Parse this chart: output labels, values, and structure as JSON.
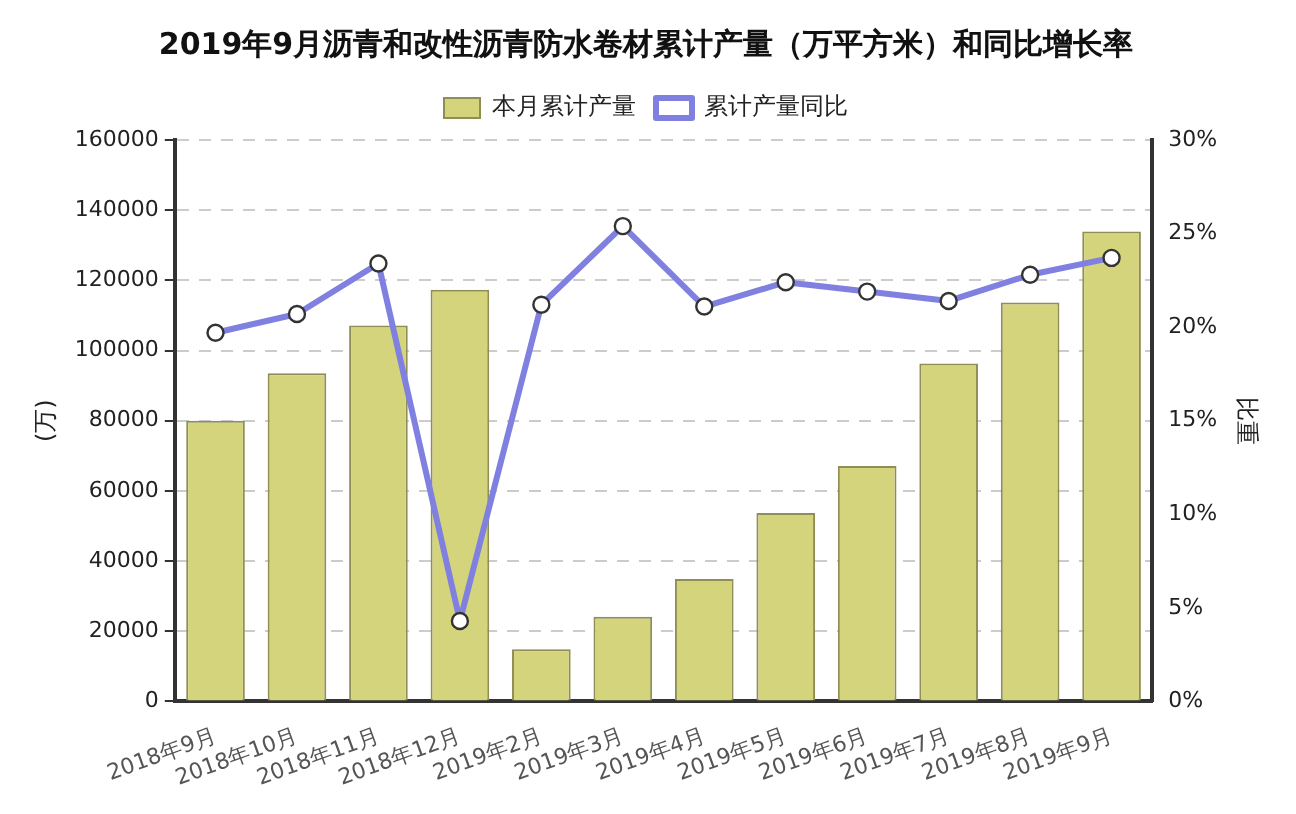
{
  "chart_data": {
    "type": "bar",
    "title": "2019年9月沥青和改性沥青防水卷材累计产量（万平方米）和同比增长率",
    "ylabel": "(万)",
    "y2label": "比重",
    "categories": [
      "2018年9月",
      "2018年10月",
      "2018年11月",
      "2018年12月",
      "2019年2月",
      "2019年3月",
      "2019年4月",
      "2019年5月",
      "2019年6月",
      "2019年7月",
      "2019年8月",
      "2019年9月"
    ],
    "series": [
      {
        "name": "本月累计产量",
        "color": "#d4d47c",
        "values": [
          80000,
          93500,
          107100,
          117300,
          14900,
          24100,
          34900,
          53700,
          67100,
          96300,
          113700,
          133900
        ]
      },
      {
        "name": "累计产量同比",
        "type": "line",
        "axis": "y2",
        "color": "#8080e0",
        "marker": "circle",
        "values": [
          19.7,
          20.7,
          23.4,
          4.3,
          21.2,
          25.4,
          21.1,
          22.4,
          21.9,
          21.4,
          22.8,
          23.7
        ]
      }
    ],
    "ylim": [
      0,
      160000
    ],
    "yticks": [
      0,
      20000,
      40000,
      60000,
      80000,
      100000,
      120000,
      140000,
      160000
    ],
    "y2lim": [
      0,
      30
    ],
    "y2ticks": [
      {
        "value": 0,
        "label": "0%"
      },
      {
        "value": 5,
        "label": "5%"
      },
      {
        "value": 10,
        "label": "10%"
      },
      {
        "value": 15,
        "label": "15%"
      },
      {
        "value": 20,
        "label": "20%"
      },
      {
        "value": 25,
        "label": "25%"
      },
      {
        "value": 30,
        "label": "30%"
      }
    ],
    "grid": "y",
    "legend": "top"
  }
}
